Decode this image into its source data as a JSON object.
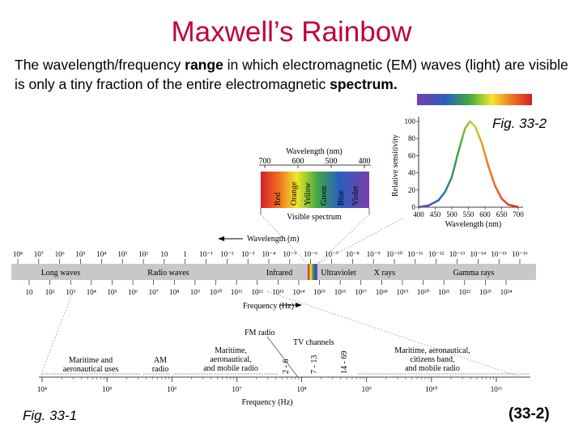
{
  "title": "Maxwell’s Rainbow",
  "intro": {
    "part1": "The wavelength/frequency ",
    "bold1": "range",
    "part2": " in which electromagnetic (EM) waves (light) are visible is only a tiny fraction of the entire electromagnetic ",
    "bold2": "spectrum."
  },
  "fig2_label": "Fig. 33-2",
  "fig1_label": "Fig. 33-1",
  "eq_number": "(33-2)",
  "visible": {
    "wavelength_title": "Wavelength (nm)",
    "ticks": [
      "700",
      "600",
      "500",
      "400"
    ],
    "colors": [
      "Red",
      "Orange",
      "Yellow",
      "Green",
      "Blue",
      "Violet"
    ],
    "spectrum_label": "Visible spectrum"
  },
  "main_spectrum": {
    "wavelength_label": "Wavelength (m)",
    "wavelength_ticks": [
      "10⁸",
      "10⁷",
      "10⁶",
      "10⁵",
      "10⁴",
      "10³",
      "10²",
      "10",
      "1",
      "10⁻¹",
      "10⁻²",
      "10⁻³",
      "10⁻⁴",
      "10⁻⁵",
      "10⁻⁶",
      "10⁻⁷",
      "10⁻⁸",
      "10⁻⁹",
      "10⁻¹⁰",
      "10⁻¹¹",
      "10⁻¹²",
      "10⁻¹³",
      "10⁻¹⁴",
      "10⁻¹⁵",
      "10⁻¹⁶"
    ],
    "bands": [
      "Long waves",
      "Radio waves",
      "Infrared",
      "Ultraviolet",
      "X rays",
      "Gamma rays"
    ],
    "frequency_ticks": [
      "10",
      "10²",
      "10³",
      "10⁴",
      "10⁵",
      "10⁶",
      "10⁷",
      "10⁸",
      "10⁹",
      "10¹⁰",
      "10¹¹",
      "10¹²",
      "10¹³",
      "10¹⁴",
      "10¹⁵",
      "10¹⁶",
      "10¹⁷",
      "10¹⁸",
      "10¹⁹",
      "10²⁰",
      "10²¹",
      "10²²",
      "10²³",
      "10²⁴"
    ],
    "frequency_label": "Frequency (Hz)"
  },
  "radio": {
    "fm_label": "FM radio",
    "tv_label": "TV channels",
    "tv_ranges": [
      "2 - 6",
      "7 - 13",
      "14 - 69"
    ],
    "services": [
      "Maritime and aeronautical uses",
      "AM radio",
      "Maritime, aeronautical, and mobile radio",
      "Maritime, aeronautical, citizens band, and mobile radio"
    ],
    "freq_ticks": [
      "10⁴",
      "10⁵",
      "10⁶",
      "10⁷",
      "10⁸",
      "10⁹",
      "10¹⁰",
      "10¹¹"
    ],
    "freq_label": "Frequency (Hz)"
  },
  "sensitivity_chart": {
    "ylabel": "Relative sensitivity",
    "yticks": [
      "0",
      "20",
      "40",
      "60",
      "80",
      "100"
    ],
    "xticks": [
      "400",
      "450",
      "500",
      "550",
      "600",
      "650",
      "700"
    ],
    "xlabel": "Wavelength (nm)"
  },
  "chart_data": {
    "type": "line",
    "xlabel": "Wavelength (nm)",
    "ylabel": "Relative sensitivity",
    "xlim": [
      400,
      700
    ],
    "ylim": [
      0,
      100
    ],
    "x": [
      400,
      430,
      460,
      480,
      500,
      520,
      540,
      555,
      570,
      590,
      610,
      630,
      650,
      670,
      690,
      700
    ],
    "series": [
      {
        "values": [
          0,
          2,
          8,
          18,
          35,
          65,
          92,
          100,
          94,
          75,
          48,
          25,
          10,
          3,
          1,
          0
        ]
      }
    ]
  },
  "colors": {
    "title": "#c0003c",
    "band_bar": "#c8c8c8",
    "curve": "#e83040"
  }
}
